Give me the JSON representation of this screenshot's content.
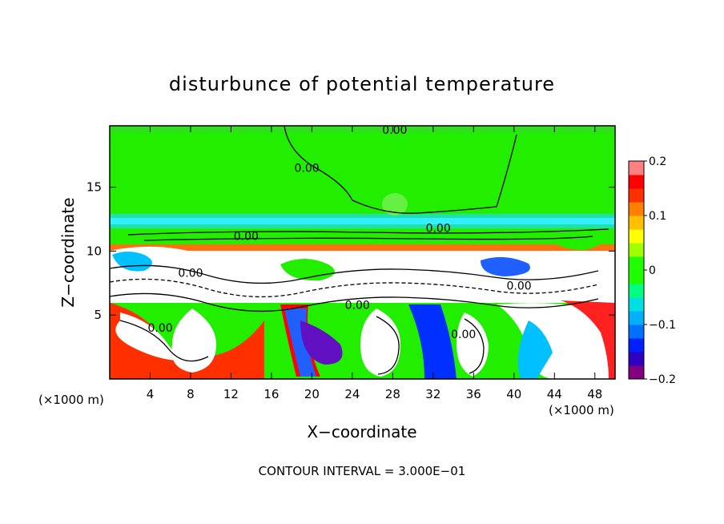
{
  "chart_data": {
    "type": "heatmap",
    "title": "disturbunce of potential temperature",
    "xlabel": "X−coordinate",
    "ylabel": "Z−coordinate",
    "x_unit_left": "(×1000 m)",
    "x_unit_right": "(×1000 m)",
    "xlim": [
      0,
      50
    ],
    "ylim": [
      0,
      19.8
    ],
    "x_ticks": [
      4,
      8,
      12,
      16,
      20,
      24,
      28,
      32,
      36,
      40,
      44,
      48
    ],
    "x_tick_labels": [
      "4",
      "8",
      "12",
      "16",
      "20",
      "24",
      "28",
      "32",
      "36",
      "40",
      "44",
      "48"
    ],
    "y_ticks": [
      5,
      10,
      15
    ],
    "y_tick_labels": [
      "5",
      "10",
      "15"
    ],
    "footer": "CONTOUR INTERVAL = 3.000E−01",
    "colorbar": {
      "min": -0.2,
      "max": 0.2,
      "ticks": [
        0.2,
        0.1,
        0,
        -0.1,
        -0.2
      ],
      "tick_labels": [
        "0.2",
        "0.1",
        "0",
        "−0.1",
        "−0.2"
      ],
      "colors": [
        "#800080",
        "#3000c0",
        "#0020ff",
        "#0070ff",
        "#00b0ff",
        "#00e0e0",
        "#00ff80",
        "#20ff00",
        "#20ff00",
        "#a0ff00",
        "#ffff00",
        "#ffc000",
        "#ff8000",
        "#ff3000",
        "#ff0000",
        "#ff8080"
      ]
    },
    "contour_labels": [
      {
        "text": "0.00",
        "x": 28.2,
        "z": 19.5
      },
      {
        "text": "0.00",
        "x": 19.5,
        "z": 16.5
      },
      {
        "text": "0.00",
        "x": 13.5,
        "z": 11.2
      },
      {
        "text": "0.00",
        "x": 32.5,
        "z": 11.8
      },
      {
        "text": "0.00",
        "x": 24.5,
        "z": 5.8
      },
      {
        "text": "0.00",
        "x": 8.0,
        "z": 8.3
      },
      {
        "text": "0.00",
        "x": 5.0,
        "z": 4.0
      },
      {
        "text": "0.00",
        "x": 35.0,
        "z": 3.5
      },
      {
        "text": "0.00",
        "x": 40.5,
        "z": 7.3
      }
    ]
  }
}
